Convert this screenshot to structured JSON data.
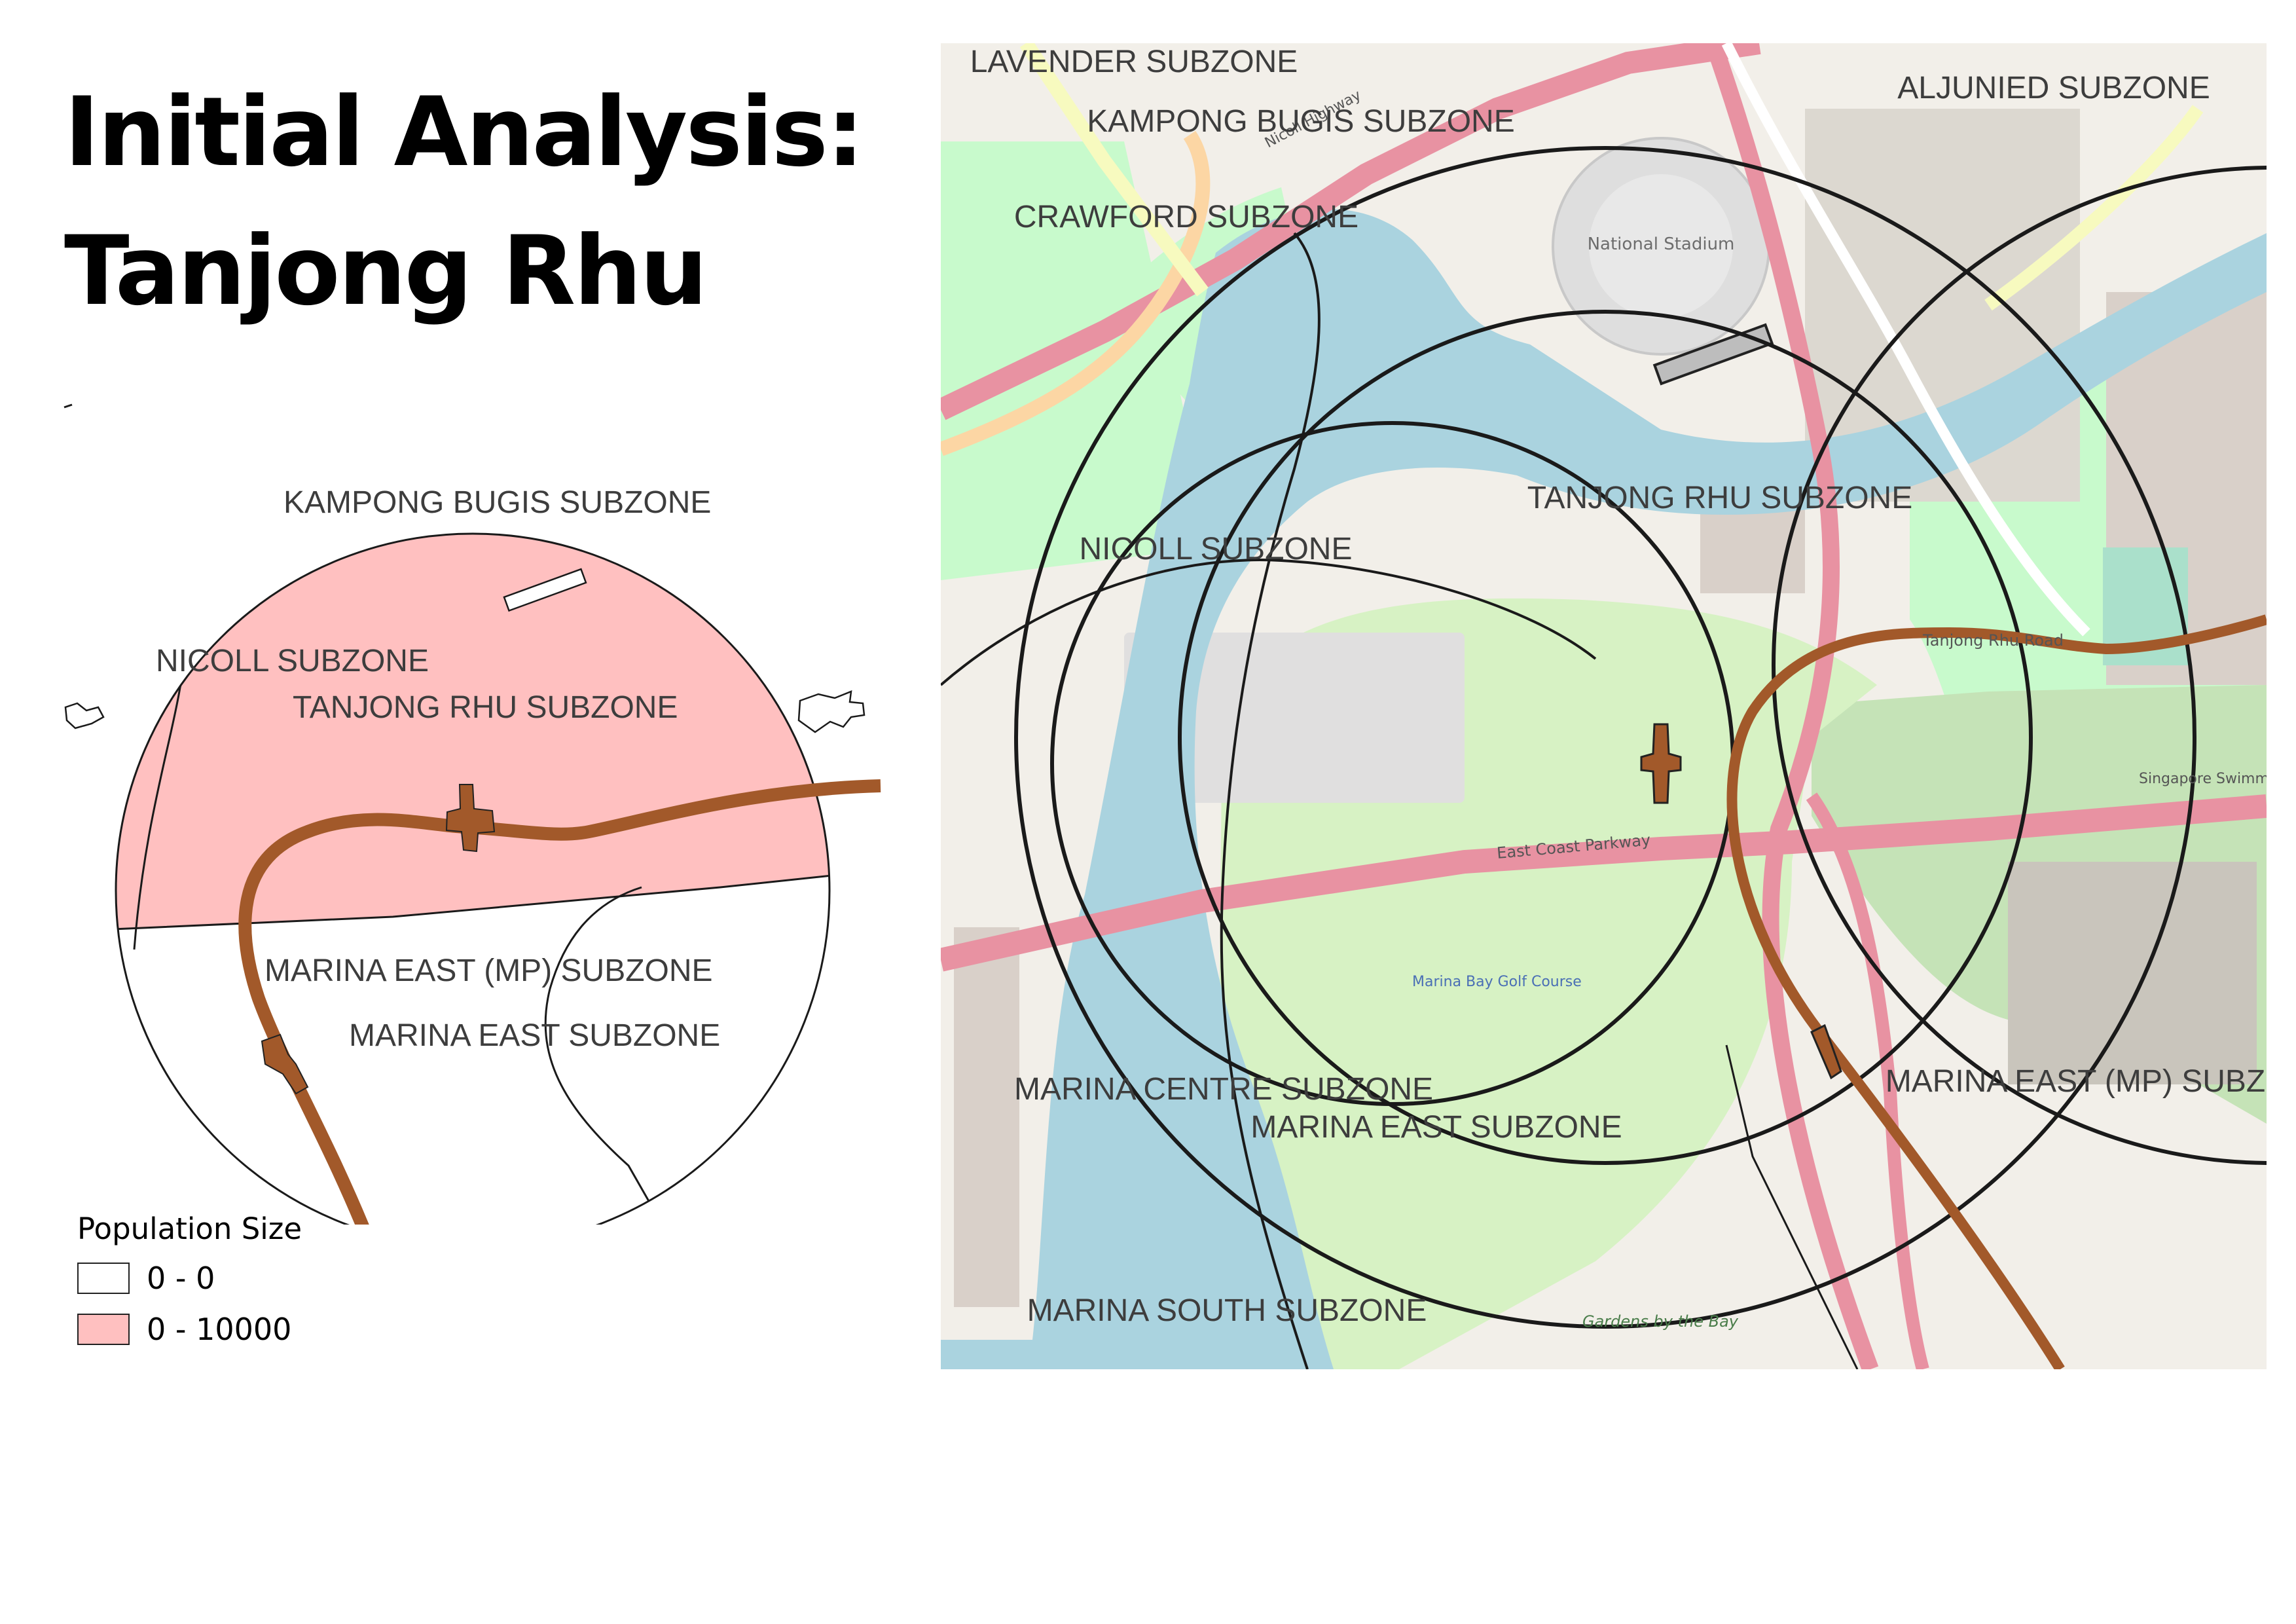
{
  "title": {
    "line1": "Initial Analysis:",
    "line2": "Tanjong Rhu"
  },
  "colors": {
    "populated_fill": "#ffc0c0",
    "empty_fill": "#ffffff",
    "rail": "#a2592a",
    "station": "#a2592a",
    "water": "#aad3df",
    "park": "#c8facc",
    "land": "#f2efe9",
    "highway": "#e892a2",
    "boundary": "#1a1a1a"
  },
  "left_map": {
    "zone_labels": [
      "KAMPONG BUGIS SUBZONE",
      "NICOLL SUBZONE",
      "TANJONG RHU SUBZONE",
      "MARINA EAST (MP) SUBZONE",
      "MARINA EAST SUBZONE"
    ]
  },
  "legend": {
    "title": "Population Size",
    "items": [
      {
        "label": "0 - 0",
        "color": "#ffffff"
      },
      {
        "label": "0 - 10000",
        "color": "#ffc0c0"
      }
    ]
  },
  "right_map": {
    "zone_labels": [
      "LAVENDER SUBZONE",
      "KAMPONG BUGIS SUBZONE",
      "ALJUNIED SUBZONE",
      "CRAWFORD SUBZONE",
      "TANJONG RHU SUBZONE",
      "NICOLL SUBZONE",
      "MARINA EAST (MP) SUBZONE",
      "MARINA CENTRE SUBZONE",
      "MARINA EAST SUBZONE",
      "MARINA SOUTH SUBZONE"
    ],
    "map_labels": [
      "National Stadium",
      "Tanjong Rhu Road",
      "East Coast Parkway",
      "Nicoll Highway",
      "Gardens by the Bay",
      "Marina Bay Golf Course",
      "Singapore Swimming Club"
    ]
  }
}
